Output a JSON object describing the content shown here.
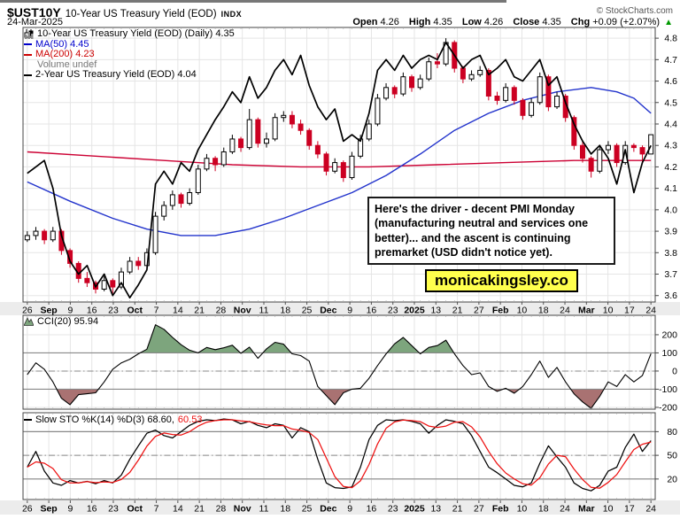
{
  "header": {
    "symbol": "$UST10Y",
    "title": "10-Year US Treasury Yield (EOD)",
    "exchange": "INDX",
    "source": "© StockCharts.com",
    "date": "24-Mar-2025",
    "quote": {
      "open_label": "Open",
      "open": "4.26",
      "high_label": "High",
      "high": "4.35",
      "low_label": "Low",
      "low": "4.26",
      "close_label": "Close",
      "close": "4.35",
      "chg_label": "Chg",
      "chg": "+0.09 (+2.07%)",
      "direction": "▲"
    }
  },
  "colors": {
    "up_green": "#009900",
    "legend_blue": "#0000cc",
    "legend_red": "#cc0000",
    "legend_gray": "#777777",
    "watermark_bg": "#ffff4d"
  },
  "annotation": {
    "text": "Here's the driver - decent PMI Monday (manufacturing neutral and services one better)... and the ascent is continuing premarket (USD didn't notice yet)."
  },
  "watermark": "monicakingsley.co",
  "chart_data": [
    {
      "name": "price",
      "type": "candlestick",
      "legend": "10-Year US Treasury Yield (EOD) (Daily) 4.35",
      "volume_label": "Volume undef",
      "ylim": [
        3.57,
        4.85
      ],
      "y_ticks": [
        "4.8",
        "4.7",
        "4.6",
        "4.5",
        "4.4",
        "4.3",
        "4.2",
        "4.1",
        "4.0",
        "3.9",
        "3.8",
        "3.7",
        "3.6"
      ],
      "x_ticks": [
        {
          "t": "26",
          "b": 0
        },
        {
          "t": "Sep",
          "b": 1
        },
        {
          "t": "9",
          "b": 0
        },
        {
          "t": "16",
          "b": 0
        },
        {
          "t": "23",
          "b": 0
        },
        {
          "t": "Oct",
          "b": 1
        },
        {
          "t": "7",
          "b": 0
        },
        {
          "t": "14",
          "b": 0
        },
        {
          "t": "21",
          "b": 0
        },
        {
          "t": "28",
          "b": 0
        },
        {
          "t": "Nov",
          "b": 1
        },
        {
          "t": "11",
          "b": 0
        },
        {
          "t": "18",
          "b": 0
        },
        {
          "t": "25",
          "b": 0
        },
        {
          "t": "Dec",
          "b": 1
        },
        {
          "t": "9",
          "b": 0
        },
        {
          "t": "16",
          "b": 0
        },
        {
          "t": "23",
          "b": 0
        },
        {
          "t": "2025",
          "b": 1
        },
        {
          "t": "13",
          "b": 0
        },
        {
          "t": "21",
          "b": 0
        },
        {
          "t": "27",
          "b": 0
        },
        {
          "t": "Feb",
          "b": 1
        },
        {
          "t": "10",
          "b": 0
        },
        {
          "t": "18",
          "b": 0
        },
        {
          "t": "24",
          "b": 0
        },
        {
          "t": "Mar",
          "b": 1
        },
        {
          "t": "10",
          "b": 0
        },
        {
          "t": "17",
          "b": 0
        },
        {
          "t": "24",
          "b": 0
        }
      ],
      "up_color": "#ffffff",
      "down_color": "#cc0022",
      "ohlc": [
        [
          3.86,
          3.9,
          3.85,
          3.88
        ],
        [
          3.88,
          3.92,
          3.86,
          3.9
        ],
        [
          3.9,
          3.91,
          3.84,
          3.86
        ],
        [
          3.86,
          3.92,
          3.85,
          3.9
        ],
        [
          3.9,
          3.91,
          3.79,
          3.81
        ],
        [
          3.81,
          3.82,
          3.73,
          3.75
        ],
        [
          3.75,
          3.76,
          3.66,
          3.68
        ],
        [
          3.68,
          3.71,
          3.64,
          3.66
        ],
        [
          3.66,
          3.67,
          3.61,
          3.63
        ],
        [
          3.63,
          3.69,
          3.62,
          3.67
        ],
        [
          3.67,
          3.68,
          3.61,
          3.64
        ],
        [
          3.64,
          3.73,
          3.63,
          3.71
        ],
        [
          3.71,
          3.78,
          3.7,
          3.76
        ],
        [
          3.76,
          3.78,
          3.72,
          3.74
        ],
        [
          3.74,
          3.82,
          3.73,
          3.8
        ],
        [
          3.8,
          3.99,
          3.79,
          3.97
        ],
        [
          3.97,
          4.04,
          3.95,
          4.02
        ],
        [
          4.02,
          4.09,
          4.0,
          4.07
        ],
        [
          4.07,
          4.08,
          4.01,
          4.03
        ],
        [
          4.03,
          4.1,
          4.02,
          4.08
        ],
        [
          4.08,
          4.21,
          4.07,
          4.19
        ],
        [
          4.19,
          4.26,
          4.18,
          4.24
        ],
        [
          4.24,
          4.25,
          4.18,
          4.21
        ],
        [
          4.21,
          4.29,
          4.2,
          4.27
        ],
        [
          4.27,
          4.35,
          4.26,
          4.33
        ],
        [
          4.33,
          4.34,
          4.27,
          4.29
        ],
        [
          4.29,
          4.47,
          4.28,
          4.42
        ],
        [
          4.42,
          4.43,
          4.29,
          4.31
        ],
        [
          4.31,
          4.36,
          4.29,
          4.33
        ],
        [
          4.33,
          4.45,
          4.32,
          4.43
        ],
        [
          4.43,
          4.46,
          4.41,
          4.44
        ],
        [
          4.44,
          4.46,
          4.38,
          4.4
        ],
        [
          4.4,
          4.42,
          4.35,
          4.37
        ],
        [
          4.37,
          4.38,
          4.28,
          4.3
        ],
        [
          4.3,
          4.32,
          4.24,
          4.26
        ],
        [
          4.26,
          4.27,
          4.16,
          4.18
        ],
        [
          4.18,
          4.24,
          4.17,
          4.22
        ],
        [
          4.22,
          4.23,
          4.13,
          4.15
        ],
        [
          4.15,
          4.27,
          4.14,
          4.25
        ],
        [
          4.25,
          4.35,
          4.24,
          4.33
        ],
        [
          4.33,
          4.42,
          4.32,
          4.4
        ],
        [
          4.4,
          4.54,
          4.39,
          4.52
        ],
        [
          4.52,
          4.59,
          4.51,
          4.57
        ],
        [
          4.57,
          4.58,
          4.52,
          4.54
        ],
        [
          4.54,
          4.64,
          4.53,
          4.62
        ],
        [
          4.62,
          4.63,
          4.55,
          4.57
        ],
        [
          4.57,
          4.63,
          4.56,
          4.61
        ],
        [
          4.61,
          4.71,
          4.6,
          4.69
        ],
        [
          4.69,
          4.73,
          4.66,
          4.68
        ],
        [
          4.68,
          4.8,
          4.67,
          4.78
        ],
        [
          4.78,
          4.79,
          4.64,
          4.66
        ],
        [
          4.66,
          4.67,
          4.59,
          4.61
        ],
        [
          4.61,
          4.65,
          4.6,
          4.63
        ],
        [
          4.63,
          4.67,
          4.62,
          4.65
        ],
        [
          4.65,
          4.66,
          4.51,
          4.53
        ],
        [
          4.53,
          4.55,
          4.49,
          4.51
        ],
        [
          4.51,
          4.59,
          4.5,
          4.57
        ],
        [
          4.57,
          4.58,
          4.49,
          4.51
        ],
        [
          4.51,
          4.52,
          4.42,
          4.44
        ],
        [
          4.44,
          4.52,
          4.43,
          4.5
        ],
        [
          4.5,
          4.64,
          4.49,
          4.62
        ],
        [
          4.62,
          4.63,
          4.46,
          4.48
        ],
        [
          4.48,
          4.55,
          4.47,
          4.53
        ],
        [
          4.53,
          4.54,
          4.41,
          4.43
        ],
        [
          4.43,
          4.44,
          4.28,
          4.3
        ],
        [
          4.3,
          4.32,
          4.22,
          4.24
        ],
        [
          4.24,
          4.25,
          4.15,
          4.18
        ],
        [
          4.18,
          4.3,
          4.17,
          4.28
        ],
        [
          4.28,
          4.32,
          4.26,
          4.3
        ],
        [
          4.3,
          4.31,
          4.2,
          4.22
        ],
        [
          4.22,
          4.32,
          4.21,
          4.3
        ],
        [
          4.3,
          4.31,
          4.27,
          4.29
        ],
        [
          4.29,
          4.3,
          4.22,
          4.26
        ],
        [
          4.26,
          4.35,
          4.26,
          4.35
        ]
      ],
      "ma50": {
        "label": "MA(50) 4.45",
        "color": "#2233cc",
        "anchors": [
          [
            0,
            4.13
          ],
          [
            5,
            4.04
          ],
          [
            10,
            3.96
          ],
          [
            14,
            3.91
          ],
          [
            18,
            3.88
          ],
          [
            22,
            3.88
          ],
          [
            26,
            3.91
          ],
          [
            30,
            3.96
          ],
          [
            34,
            4.02
          ],
          [
            38,
            4.08
          ],
          [
            42,
            4.16
          ],
          [
            46,
            4.26
          ],
          [
            50,
            4.37
          ],
          [
            54,
            4.45
          ],
          [
            58,
            4.51
          ],
          [
            62,
            4.55
          ],
          [
            66,
            4.57
          ],
          [
            69,
            4.55
          ],
          [
            71,
            4.52
          ],
          [
            73,
            4.45
          ]
        ]
      },
      "ma200": {
        "label": "MA(200) 4.23",
        "color": "#cc0033",
        "anchors": [
          [
            0,
            4.27
          ],
          [
            8,
            4.25
          ],
          [
            16,
            4.23
          ],
          [
            24,
            4.21
          ],
          [
            32,
            4.2
          ],
          [
            40,
            4.2
          ],
          [
            48,
            4.21
          ],
          [
            56,
            4.22
          ],
          [
            64,
            4.23
          ],
          [
            73,
            4.23
          ]
        ]
      },
      "line_2yr": {
        "label": "2-Year US Treasury Yield (EOD) 4.04",
        "color": "#000000",
        "values": [
          4.17,
          4.2,
          4.23,
          4.1,
          3.88,
          3.76,
          3.7,
          3.74,
          3.64,
          3.7,
          3.6,
          3.66,
          3.59,
          3.65,
          3.72,
          4.12,
          4.18,
          4.12,
          4.22,
          4.18,
          4.28,
          4.35,
          4.42,
          4.48,
          4.55,
          4.5,
          4.62,
          4.52,
          4.57,
          4.65,
          4.7,
          4.63,
          4.72,
          4.58,
          4.48,
          4.42,
          4.47,
          4.32,
          4.35,
          4.32,
          4.45,
          4.65,
          4.7,
          4.65,
          4.72,
          4.66,
          4.7,
          4.72,
          4.7,
          4.78,
          4.72,
          4.66,
          4.7,
          4.72,
          4.63,
          4.66,
          4.7,
          4.62,
          4.6,
          4.65,
          4.7,
          4.58,
          4.62,
          4.5,
          4.4,
          4.32,
          4.26,
          4.3,
          4.24,
          4.12,
          4.28,
          4.08,
          4.22,
          4.3
        ]
      }
    },
    {
      "name": "cci",
      "type": "line",
      "label": "CCI(20) 95.94",
      "ylim": [
        -210,
        307
      ],
      "y_ticks": [
        "200",
        "100",
        "0",
        "-100",
        "-200"
      ],
      "bands": {
        "upper": 100,
        "lower": -100,
        "mid": 0
      },
      "line_color": "#000000",
      "fill_above": "#7da57d",
      "fill_below": "#a97272",
      "values": [
        -20,
        45,
        10,
        -60,
        -150,
        -185,
        -130,
        -125,
        -120,
        -60,
        10,
        45,
        65,
        95,
        120,
        255,
        230,
        185,
        145,
        115,
        100,
        130,
        118,
        128,
        142,
        98,
        132,
        70,
        122,
        158,
        148,
        95,
        85,
        55,
        -85,
        -135,
        -185,
        -120,
        -100,
        -95,
        -40,
        30,
        95,
        150,
        185,
        140,
        95,
        130,
        140,
        170,
        95,
        30,
        -20,
        -10,
        -85,
        -112,
        -95,
        -122,
        -85,
        -20,
        55,
        -35,
        20,
        -60,
        -125,
        -170,
        -205,
        -140,
        -60,
        -85,
        -20,
        -60,
        -25,
        96
      ]
    },
    {
      "name": "sto",
      "type": "line",
      "label_k": "Slow STO %K(14) %D(3) 68.60,",
      "label_d": "60.53",
      "ylim": [
        -6,
        104
      ],
      "y_ticks": [
        "80",
        "50",
        "20"
      ],
      "bands": {
        "upper": 80,
        "lower": 20,
        "mid": 50
      },
      "k_color": "#000000",
      "d_color": "#ee1111",
      "k_values": [
        35,
        55,
        30,
        15,
        12,
        18,
        15,
        17,
        14,
        18,
        15,
        25,
        45,
        62,
        78,
        82,
        75,
        72,
        80,
        88,
        93,
        95,
        94,
        96,
        95,
        90,
        93,
        88,
        85,
        90,
        88,
        72,
        85,
        80,
        45,
        15,
        9,
        8,
        10,
        35,
        70,
        88,
        95,
        94,
        95,
        93,
        90,
        78,
        88,
        95,
        93,
        90,
        75,
        55,
        35,
        28,
        20,
        12,
        10,
        15,
        40,
        62,
        48,
        35,
        15,
        8,
        5,
        12,
        30,
        35,
        60,
        77,
        55,
        68.6
      ]
    }
  ]
}
